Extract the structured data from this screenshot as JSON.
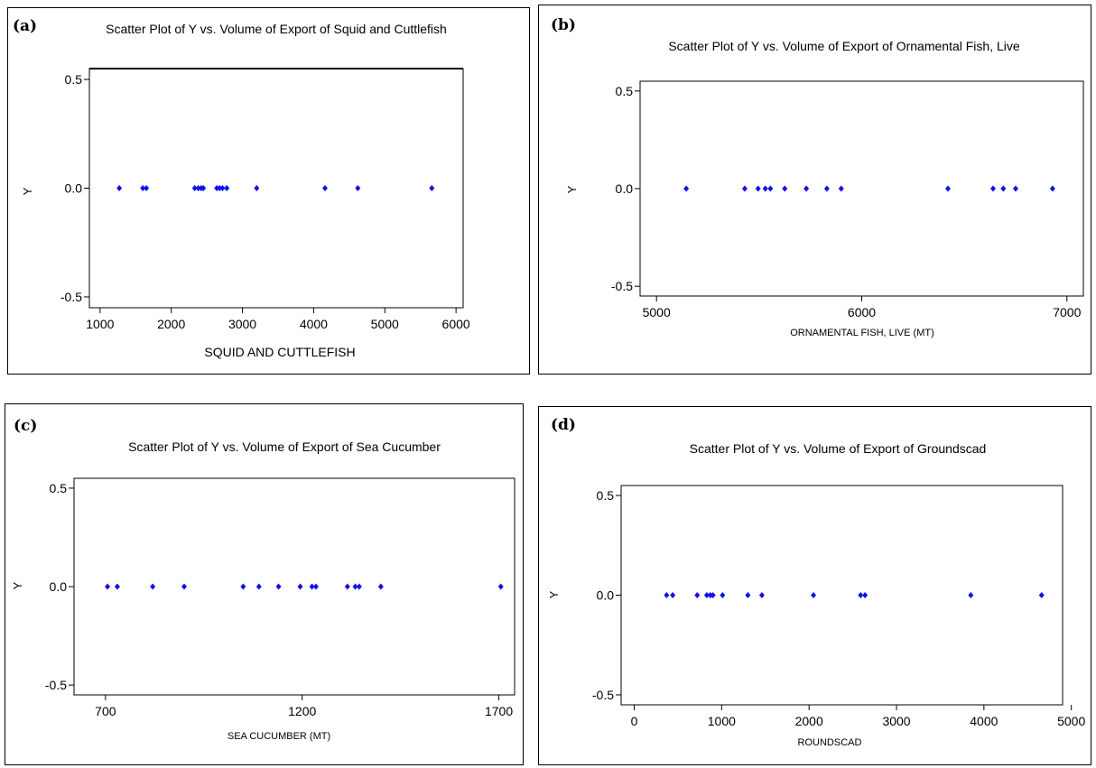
{
  "chart_data": [
    {
      "type": "scatter",
      "letter": "(a)",
      "title": "Scatter Plot of Y vs. Volume of Export of Squid and Cuttlefish",
      "xlabel": "SQUID AND CUTTLEFISH",
      "ylabel": "Y",
      "xlim": [
        850,
        6100
      ],
      "ylim": [
        -0.55,
        0.55
      ],
      "xticks": [
        "1000",
        "2000",
        "3000",
        "4000",
        "5000",
        "6000"
      ],
      "yticks": [
        "0.5",
        "0.0",
        "-0.5"
      ],
      "x": [
        1270,
        1600,
        1650,
        2330,
        2380,
        2420,
        2450,
        2640,
        2680,
        2720,
        2780,
        3200,
        4160,
        4620,
        5660
      ],
      "y": [
        0,
        0,
        0,
        0,
        0,
        0,
        0,
        0,
        0,
        0,
        0,
        0,
        0,
        0,
        0
      ]
    },
    {
      "type": "scatter",
      "letter": "(b)",
      "title": "Scatter Plot of Y vs. Volume of Export of Ornamental Fish, Live",
      "xlabel": "ORNAMENTAL FISH, LIVE (MT)",
      "ylabel": "Y",
      "xlim": [
        4920,
        7080
      ],
      "ylim": [
        -0.55,
        0.55
      ],
      "xticks": [
        "5000",
        "6000",
        "7000"
      ],
      "yticks": [
        "0.5",
        "0.0",
        "-0.5"
      ],
      "x": [
        5145,
        5430,
        5495,
        5530,
        5555,
        5625,
        5730,
        5830,
        5900,
        6420,
        6640,
        6690,
        6750,
        6930
      ],
      "y": [
        0,
        0,
        0,
        0,
        0,
        0,
        0,
        0,
        0,
        0,
        0,
        0,
        0,
        0
      ]
    },
    {
      "type": "scatter",
      "letter": "(c)",
      "title": "Scatter Plot of Y vs. Volume of Export of Sea Cucumber",
      "xlabel": "SEA CUCUMBER (MT)",
      "ylabel": "Y",
      "xlim": [
        620,
        1740
      ],
      "ylim": [
        -0.55,
        0.55
      ],
      "xticks": [
        "700",
        "1200",
        "1700"
      ],
      "yticks": [
        "0.5",
        "0.0",
        "-0.5"
      ],
      "x": [
        705,
        730,
        820,
        900,
        1050,
        1090,
        1140,
        1195,
        1225,
        1235,
        1315,
        1335,
        1345,
        1400,
        1705
      ],
      "y": [
        0,
        0,
        0,
        0,
        0,
        0,
        0,
        0,
        0,
        0,
        0,
        0,
        0,
        0,
        0
      ]
    },
    {
      "type": "scatter",
      "letter": "(d)",
      "title": "Scatter Plot of Y vs. Volume of Export of Groundscad",
      "xlabel": "ROUNDSCAD",
      "ylabel": "Y",
      "xlim": [
        -150,
        4900
      ],
      "ylim": [
        -0.55,
        0.55
      ],
      "xticks": [
        "0",
        "1000",
        "2000",
        "3000",
        "4000",
        "5000"
      ],
      "yticks": [
        "0.5",
        "0.0",
        "-0.5"
      ],
      "x": [
        370,
        440,
        720,
        830,
        870,
        900,
        1010,
        1300,
        1460,
        2050,
        2590,
        2640,
        3850,
        4660
      ],
      "y": [
        0,
        0,
        0,
        0,
        0,
        0,
        0,
        0,
        0,
        0,
        0,
        0,
        0,
        0
      ]
    }
  ],
  "colors": {
    "point": "#1010ee",
    "frame": "#000000"
  }
}
